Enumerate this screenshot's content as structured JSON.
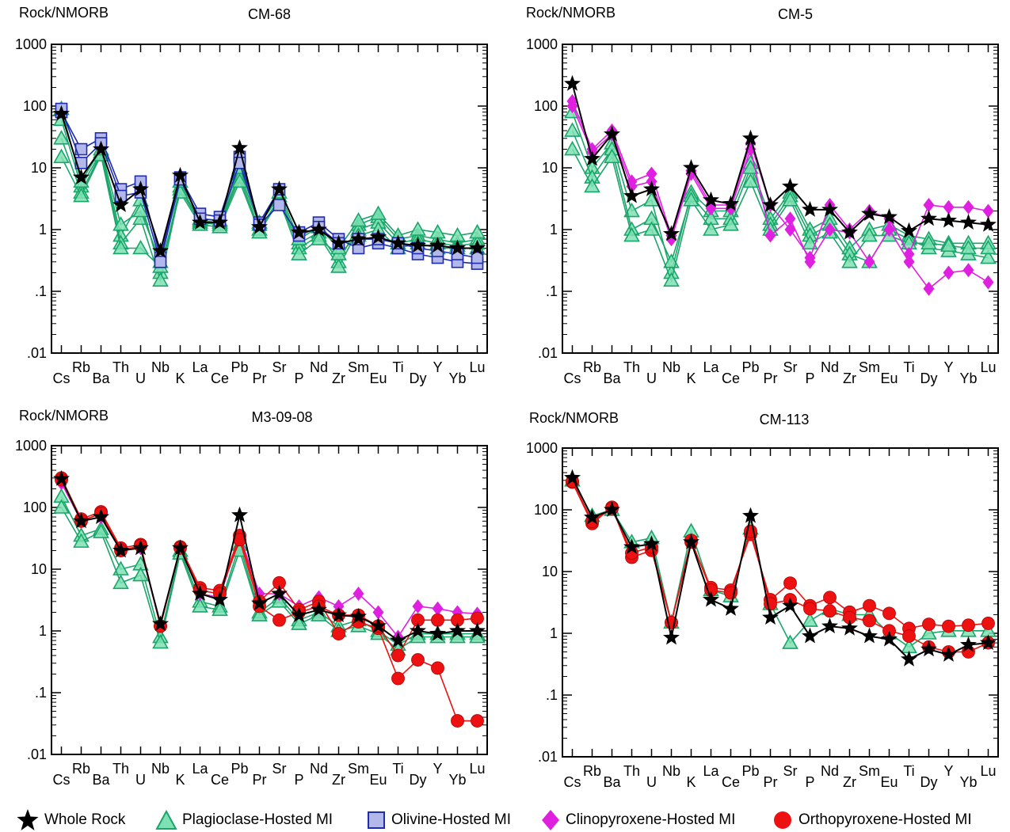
{
  "figure": {
    "y_label": "Rock/NMORB",
    "y_ticks": [
      {
        "v": 1000,
        "label": "1000"
      },
      {
        "v": 100,
        "label": "100"
      },
      {
        "v": 10,
        "label": "10"
      },
      {
        "v": 1,
        "label": "1"
      },
      {
        "v": 0.1,
        "label": ".1"
      },
      {
        "v": 0.01,
        "label": ".01"
      }
    ],
    "elements": [
      "Cs",
      "Rb",
      "Ba",
      "Th",
      "U",
      "Nb",
      "K",
      "La",
      "Ce",
      "Pb",
      "Pr",
      "Sr",
      "P",
      "Nd",
      "Zr",
      "Sm",
      "Eu",
      "Ti",
      "Dy",
      "Y",
      "Yb",
      "Lu"
    ]
  },
  "colors": {
    "whole_rock": "#000000",
    "plagioclase_fill": "#7fe0b4",
    "plagioclase_stroke": "#1aa66a",
    "olivine_fill": "#b3b8ea",
    "olivine_stroke": "#1f2bb0",
    "clinopyroxene": "#e020e0",
    "orthopyroxene": "#ee1111",
    "orthopyroxene_stroke": "#b00000"
  },
  "legend": [
    {
      "key": "whole_rock",
      "label": "Whole Rock",
      "symbol": "star"
    },
    {
      "key": "plagioclase",
      "label": "Plagioclase-Hosted MI",
      "symbol": "triangle"
    },
    {
      "key": "olivine",
      "label": "Olivine-Hosted MI",
      "symbol": "square"
    },
    {
      "key": "clinopyroxene",
      "label": "Clinopyroxene-Hosted MI",
      "symbol": "diamond"
    },
    {
      "key": "orthopyroxene",
      "label": "Orthopyroxene-Hosted MI",
      "symbol": "circle"
    }
  ],
  "chart_data": [
    {
      "type": "line",
      "title": "CM-68",
      "ylabel": "Rock/NMORB",
      "yscale": "log",
      "ylim": [
        0.01,
        1000
      ],
      "categories": [
        "Cs",
        "Rb",
        "Ba",
        "Th",
        "U",
        "Nb",
        "K",
        "La",
        "Ce",
        "Pb",
        "Pr",
        "Sr",
        "P",
        "Nd",
        "Zr",
        "Sm",
        "Eu",
        "Ti",
        "Dy",
        "Y",
        "Yb",
        "Lu"
      ],
      "series": [
        {
          "kind": "plagioclase",
          "values": [
            60,
            5,
            18,
            0.8,
            3,
            0.2,
            5,
            1.4,
            1.3,
            8,
            1.2,
            3.5,
            0.6,
            0.9,
            0.3,
            1.2,
            1.6,
            0.7,
            0.8,
            0.7,
            0.6,
            0.7
          ]
        },
        {
          "kind": "plagioclase",
          "values": [
            30,
            4,
            17,
            0.6,
            1.5,
            0.15,
            4.5,
            1.3,
            1.2,
            7,
            1.0,
            3.2,
            0.5,
            0.8,
            0.25,
            1.0,
            1.3,
            0.6,
            0.7,
            0.6,
            0.55,
            0.6
          ]
        },
        {
          "kind": "plagioclase",
          "values": [
            15,
            3.5,
            16,
            0.5,
            0.5,
            0.25,
            4,
            1.2,
            1.1,
            6,
            0.9,
            3,
            0.4,
            0.7,
            0.4,
            0.8,
            1.0,
            0.5,
            0.6,
            0.5,
            0.5,
            0.5
          ]
        },
        {
          "kind": "plagioclase",
          "values": [
            90,
            6,
            20,
            1.2,
            2,
            0.3,
            6,
            1.5,
            1.4,
            10,
            1.3,
            4,
            0.7,
            1.1,
            0.5,
            1.4,
            1.8,
            0.8,
            1.0,
            0.9,
            0.8,
            0.9
          ]
        },
        {
          "kind": "olivine",
          "values": [
            80,
            20,
            30,
            4.5,
            6,
            0.35,
            7,
            1.8,
            1.6,
            15,
            1.3,
            4.5,
            0.9,
            1.3,
            0.7,
            0.5,
            0.6,
            0.5,
            0.4,
            0.35,
            0.3,
            0.28
          ]
        },
        {
          "kind": "olivine",
          "values": [
            90,
            12,
            25,
            3.5,
            4,
            0.3,
            6.5,
            1.5,
            1.4,
            12,
            1.2,
            2.5,
            0.8,
            1.1,
            0.6,
            0.7,
            0.7,
            0.6,
            0.5,
            0.45,
            0.4,
            0.35
          ]
        },
        {
          "kind": "whole_rock",
          "values": [
            75,
            7,
            20,
            2.5,
            4.5,
            0.45,
            7.5,
            1.3,
            1.3,
            21,
            1.1,
            4.5,
            0.9,
            1.0,
            0.6,
            0.7,
            0.75,
            0.6,
            0.55,
            0.55,
            0.5,
            0.5
          ]
        }
      ]
    },
    {
      "type": "line",
      "title": "CM-5",
      "ylabel": "Rock/NMORB",
      "yscale": "log",
      "ylim": [
        0.01,
        1000
      ],
      "categories": [
        "Cs",
        "Rb",
        "Ba",
        "Th",
        "U",
        "Nb",
        "K",
        "La",
        "Ce",
        "Pb",
        "Pr",
        "Sr",
        "P",
        "Nd",
        "Zr",
        "Sm",
        "Eu",
        "Ti",
        "Dy",
        "Y",
        "Yb",
        "Lu"
      ],
      "series": [
        {
          "kind": "plagioclase",
          "values": [
            80,
            10,
            25,
            2,
            3,
            0.2,
            4,
            2,
            2,
            12,
            1.5,
            4,
            1.0,
            1.5,
            0.5,
            1.0,
            1.2,
            0.8,
            0.7,
            0.6,
            0.6,
            0.6
          ]
        },
        {
          "kind": "plagioclase",
          "values": [
            40,
            7,
            20,
            1,
            1.5,
            0.3,
            3.5,
            1.5,
            1.5,
            10,
            1.2,
            3.5,
            0.8,
            1.2,
            0.4,
            0.3,
            1.0,
            0.7,
            0.5,
            0.45,
            0.4,
            0.35
          ]
        },
        {
          "kind": "plagioclase",
          "values": [
            20,
            5,
            15,
            0.8,
            1.0,
            0.15,
            3,
            1.0,
            1.2,
            6,
            1.0,
            3,
            0.6,
            0.9,
            0.3,
            0.8,
            0.8,
            0.6,
            0.6,
            0.55,
            0.5,
            0.5
          ]
        },
        {
          "kind": "clinopyroxene",
          "values": [
            120,
            20,
            40,
            6,
            8,
            0.8,
            9,
            2.5,
            2.5,
            25,
            2.5,
            1.0,
            0.35,
            2.5,
            1.0,
            2.0,
            1.5,
            0.4,
            2.5,
            2.3,
            2.3,
            2.0
          ]
        },
        {
          "kind": "clinopyroxene",
          "values": [
            100,
            18,
            35,
            5,
            6,
            0.7,
            8,
            2.2,
            2.2,
            20,
            0.8,
            1.5,
            0.3,
            1.0,
            0.9,
            0.3,
            1.0,
            0.3,
            0.11,
            0.2,
            0.22,
            0.14
          ]
        },
        {
          "kind": "whole_rock",
          "values": [
            230,
            14,
            35,
            3.5,
            4.5,
            0.85,
            10,
            3,
            2.6,
            30,
            2.5,
            5,
            2.1,
            2.1,
            0.9,
            1.8,
            1.6,
            0.95,
            1.5,
            1.4,
            1.3,
            1.2
          ]
        }
      ]
    },
    {
      "type": "line",
      "title": "M3-09-08",
      "ylabel": "Rock/NMORB",
      "yscale": "log",
      "ylim": [
        0.01,
        1000
      ],
      "categories": [
        "Cs",
        "Rb",
        "Ba",
        "Th",
        "U",
        "Nb",
        "K",
        "La",
        "Ce",
        "Pb",
        "Pr",
        "Sr",
        "P",
        "Nd",
        "Zr",
        "Sm",
        "Eu",
        "Ti",
        "Dy",
        "Y",
        "Yb",
        "Lu"
      ],
      "series": [
        {
          "kind": "plagioclase",
          "values": [
            150,
            35,
            45,
            10,
            12,
            0.8,
            20,
            3,
            2.5,
            25,
            2.0,
            3.5,
            1.5,
            2.0,
            1.2,
            1.5,
            1.0,
            0.6,
            0.9,
            0.9,
            0.9,
            0.9
          ]
        },
        {
          "kind": "plagioclase",
          "values": [
            100,
            28,
            40,
            6,
            8,
            0.65,
            18,
            2.5,
            2.2,
            20,
            1.8,
            3.0,
            1.3,
            1.8,
            1.0,
            1.2,
            0.9,
            0.5,
            0.8,
            0.8,
            0.8,
            0.8
          ]
        },
        {
          "kind": "clinopyroxene",
          "values": [
            250,
            60,
            70,
            20,
            22,
            1.2,
            22,
            4,
            3.5,
            35,
            4,
            4,
            2.5,
            3.5,
            2.5,
            4,
            2,
            0.8,
            2.5,
            2.3,
            2.0,
            1.9
          ]
        },
        {
          "kind": "orthopyroxene",
          "values": [
            300,
            65,
            85,
            22,
            25,
            1.2,
            23,
            5,
            4.5,
            35,
            3,
            6,
            2.2,
            3,
            0.9,
            1.4,
            1.1,
            0.17,
            0.34,
            0.25,
            0.035,
            0.035
          ]
        },
        {
          "kind": "orthopyroxene",
          "values": [
            280,
            60,
            80,
            20,
            24,
            1.2,
            22,
            4.5,
            4,
            30,
            2.5,
            1.5,
            2,
            2.5,
            1.8,
            1.8,
            1.2,
            0.4,
            1.5,
            1.5,
            1.5,
            1.6
          ]
        },
        {
          "kind": "whole_rock",
          "values": [
            290,
            60,
            70,
            20,
            22,
            1.3,
            22,
            4,
            3.2,
            75,
            2.8,
            4,
            1.8,
            2.2,
            1.8,
            1.7,
            1.2,
            0.7,
            1.0,
            0.9,
            1.0,
            1.0
          ]
        }
      ]
    },
    {
      "type": "line",
      "title": "CM-113",
      "ylabel": "Rock/NMORB",
      "yscale": "log",
      "ylim": [
        0.01,
        1000
      ],
      "categories": [
        "Cs",
        "Rb",
        "Ba",
        "Th",
        "U",
        "Nb",
        "K",
        "La",
        "Ce",
        "Pb",
        "Pr",
        "Sr",
        "P",
        "Nd",
        "Zr",
        "Sm",
        "Eu",
        "Ti",
        "Dy",
        "Y",
        "Yb",
        "Lu"
      ],
      "series": [
        {
          "kind": "plagioclase",
          "values": [
            300,
            80,
            100,
            30,
            35,
            1.5,
            45,
            5,
            4,
            50,
            3,
            0.7,
            1.6,
            2.5,
            2,
            2,
            1,
            0.6,
            1,
            1.1,
            1.1,
            1.1
          ]
        },
        {
          "kind": "orthopyroxene",
          "values": [
            280,
            60,
            110,
            17,
            22,
            1.5,
            30,
            5.5,
            5,
            40,
            3.5,
            6.5,
            2.8,
            3.8,
            2.2,
            2.8,
            2.1,
            1.2,
            1.4,
            1.3,
            1.35,
            1.45
          ]
        },
        {
          "kind": "orthopyroxene",
          "values": [
            290,
            65,
            105,
            20,
            25,
            1.5,
            32,
            5,
            4.5,
            45,
            3,
            3.5,
            2.5,
            2.3,
            1.8,
            1.6,
            1.1,
            0.9,
            0.6,
            0.5,
            0.5,
            0.7
          ]
        },
        {
          "kind": "whole_rock",
          "values": [
            330,
            75,
            100,
            25,
            28,
            0.85,
            30,
            3.5,
            2.5,
            80,
            1.8,
            2.8,
            0.9,
            1.3,
            1.2,
            0.9,
            0.8,
            0.38,
            0.55,
            0.45,
            0.65,
            0.7
          ]
        }
      ]
    }
  ]
}
